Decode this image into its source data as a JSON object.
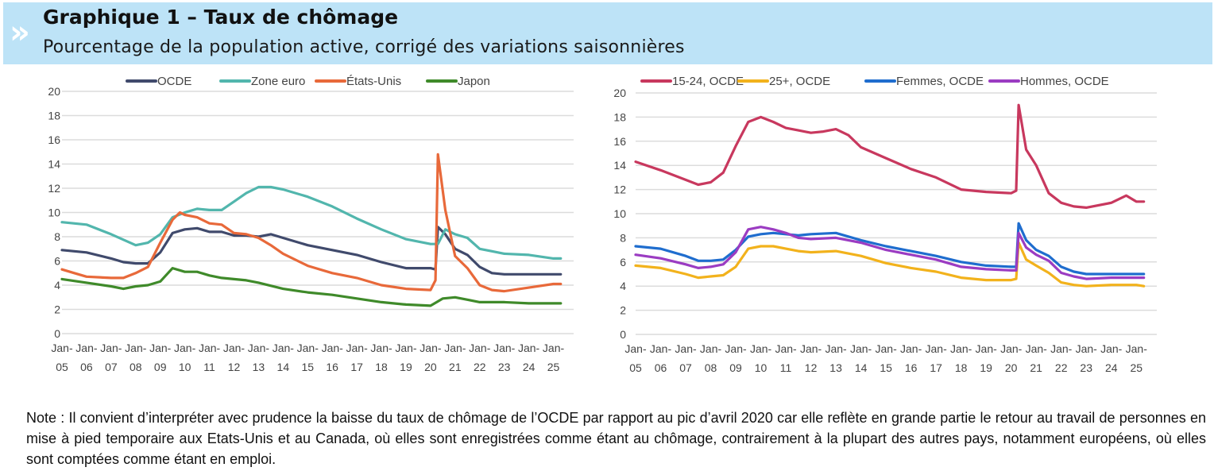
{
  "header": {
    "icon": "double-chevron-right-icon",
    "title": "Graphique 1 – Taux de chômage",
    "subtitle": "Pourcentage de la population active, corrigé des variations saisonnières"
  },
  "note": "Note : Il convient d’interpréter avec prudence la baisse du taux de chômage de l’OCDE par rapport au pic d’avril 2020 car elle reflète en grande partie le retour au travail de personnes en mise à pied temporaire aux Etats-Unis et au Canada, où elles sont enregistrées comme étant au chômage, contrairement à la plupart des autres pays, notamment européens, où elles sont comptées comme étant en emploi.",
  "chart_data": [
    {
      "type": "line",
      "title": "",
      "xlabel": "",
      "ylabel": "",
      "ylim": [
        0,
        20
      ],
      "yticks": [
        0,
        2,
        4,
        6,
        8,
        10,
        12,
        14,
        16,
        18,
        20
      ],
      "xlim": [
        2005,
        2025.5
      ],
      "grid": true,
      "legend": "top",
      "xtick_top": "Jan-",
      "xticks": [
        "05",
        "06",
        "07",
        "08",
        "09",
        "10",
        "11",
        "12",
        "13",
        "14",
        "15",
        "16",
        "17",
        "18",
        "19",
        "20",
        "21",
        "22",
        "23",
        "24",
        "25"
      ],
      "series": [
        {
          "name": "OCDE",
          "color": "#404a6c",
          "x": [
            2005,
            2006,
            2007,
            2007.5,
            2008,
            2008.5,
            2009,
            2009.5,
            2010,
            2010.5,
            2011,
            2011.5,
            2012,
            2012.5,
            2013,
            2013.5,
            2014,
            2015,
            2016,
            2017,
            2018,
            2019,
            2020,
            2020.2,
            2020.3,
            2020.6,
            2021,
            2021.5,
            2022,
            2022.5,
            2023,
            2024,
            2025,
            2025.3
          ],
          "y": [
            6.9,
            6.7,
            6.2,
            5.9,
            5.8,
            5.8,
            6.7,
            8.3,
            8.6,
            8.7,
            8.4,
            8.4,
            8.1,
            8.1,
            8.0,
            8.2,
            7.9,
            7.3,
            6.9,
            6.5,
            5.9,
            5.4,
            5.4,
            5.3,
            8.8,
            8.2,
            7.0,
            6.5,
            5.5,
            5.0,
            4.9,
            4.9,
            4.9,
            4.9
          ]
        },
        {
          "name": "Zone euro",
          "color": "#52b6ad",
          "x": [
            2005,
            2006,
            2007,
            2008,
            2008.5,
            2009,
            2009.5,
            2010,
            2010.5,
            2011,
            2011.5,
            2012,
            2012.5,
            2013,
            2013.5,
            2014,
            2015,
            2016,
            2017,
            2018,
            2019,
            2020,
            2020.3,
            2020.6,
            2021,
            2021.5,
            2022,
            2022.5,
            2023,
            2024,
            2025,
            2025.3
          ],
          "y": [
            9.2,
            9.0,
            8.2,
            7.3,
            7.5,
            8.2,
            9.6,
            10.0,
            10.3,
            10.2,
            10.2,
            10.9,
            11.6,
            12.1,
            12.1,
            11.9,
            11.3,
            10.5,
            9.5,
            8.6,
            7.8,
            7.4,
            7.4,
            8.6,
            8.2,
            7.9,
            7.0,
            6.8,
            6.6,
            6.5,
            6.2,
            6.2
          ]
        },
        {
          "name": "États-Unis",
          "color": "#e8693a",
          "x": [
            2005,
            2005.5,
            2006,
            2007,
            2007.5,
            2008,
            2008.5,
            2009,
            2009.5,
            2009.8,
            2010,
            2010.5,
            2011,
            2011.5,
            2012,
            2012.5,
            2013,
            2013.5,
            2014,
            2015,
            2016,
            2017,
            2018,
            2019,
            2020,
            2020.2,
            2020.3,
            2020.6,
            2021,
            2021.5,
            2022,
            2022.5,
            2023,
            2024,
            2025,
            2025.3
          ],
          "y": [
            5.3,
            5.0,
            4.7,
            4.6,
            4.6,
            5.0,
            5.5,
            7.5,
            9.4,
            10.0,
            9.8,
            9.6,
            9.1,
            9.0,
            8.3,
            8.2,
            7.9,
            7.3,
            6.6,
            5.6,
            5.0,
            4.6,
            4.0,
            3.7,
            3.6,
            4.4,
            14.8,
            10.2,
            6.4,
            5.4,
            4.0,
            3.6,
            3.5,
            3.8,
            4.1,
            4.1
          ]
        },
        {
          "name": "Japon",
          "color": "#3f8a2a",
          "x": [
            2005,
            2006,
            2007,
            2007.5,
            2008,
            2008.5,
            2009,
            2009.5,
            2010,
            2010.5,
            2011,
            2011.5,
            2012,
            2012.5,
            2013,
            2014,
            2015,
            2016,
            2017,
            2018,
            2019,
            2020,
            2020.5,
            2021,
            2021.5,
            2022,
            2023,
            2024,
            2025,
            2025.3
          ],
          "y": [
            4.5,
            4.2,
            3.9,
            3.7,
            3.9,
            4.0,
            4.3,
            5.4,
            5.1,
            5.1,
            4.8,
            4.6,
            4.5,
            4.4,
            4.2,
            3.7,
            3.4,
            3.2,
            2.9,
            2.6,
            2.4,
            2.3,
            2.9,
            3.0,
            2.8,
            2.6,
            2.6,
            2.5,
            2.5,
            2.5
          ]
        }
      ]
    },
    {
      "type": "line",
      "title": "",
      "xlabel": "",
      "ylabel": "",
      "ylim": [
        0,
        20
      ],
      "yticks": [
        0,
        2,
        4,
        6,
        8,
        10,
        12,
        14,
        16,
        18,
        20
      ],
      "xlim": [
        2005,
        2025.5
      ],
      "grid": true,
      "legend": "top",
      "xtick_top": "Jan-",
      "xticks": [
        "05",
        "06",
        "07",
        "08",
        "09",
        "10",
        "11",
        "12",
        "13",
        "14",
        "15",
        "16",
        "17",
        "18",
        "19",
        "20",
        "21",
        "22",
        "23",
        "24",
        "25"
      ],
      "series": [
        {
          "name": "15-24, OCDE",
          "color": "#c8385e",
          "x": [
            2005,
            2006,
            2007,
            2007.5,
            2008,
            2008.5,
            2009,
            2009.5,
            2010,
            2010.5,
            2011,
            2011.5,
            2012,
            2012.5,
            2013,
            2013.5,
            2014,
            2015,
            2016,
            2017,
            2018,
            2019,
            2020,
            2020.2,
            2020.3,
            2020.6,
            2021,
            2021.5,
            2022,
            2022.5,
            2023,
            2024,
            2024.6,
            2025,
            2025.3
          ],
          "y": [
            14.3,
            13.6,
            12.8,
            12.4,
            12.6,
            13.4,
            15.6,
            17.6,
            18.0,
            17.6,
            17.1,
            16.9,
            16.7,
            16.8,
            17.0,
            16.5,
            15.5,
            14.6,
            13.7,
            13.0,
            12.0,
            11.8,
            11.7,
            11.9,
            19.0,
            15.3,
            14.0,
            11.7,
            10.9,
            10.6,
            10.5,
            10.9,
            11.5,
            11.0,
            11.0
          ]
        },
        {
          "name": "25+, OCDE",
          "color": "#f2b21c",
          "x": [
            2005,
            2006,
            2007,
            2007.5,
            2008,
            2008.5,
            2009,
            2009.5,
            2010,
            2010.5,
            2011,
            2011.5,
            2012,
            2013,
            2014,
            2015,
            2016,
            2017,
            2018,
            2019,
            2020,
            2020.2,
            2020.3,
            2020.6,
            2021,
            2021.5,
            2022,
            2022.5,
            2023,
            2024,
            2025,
            2025.3
          ],
          "y": [
            5.7,
            5.5,
            5.0,
            4.7,
            4.8,
            4.9,
            5.6,
            7.1,
            7.3,
            7.3,
            7.1,
            6.9,
            6.8,
            6.9,
            6.5,
            5.9,
            5.5,
            5.2,
            4.7,
            4.5,
            4.5,
            4.6,
            7.6,
            6.2,
            5.7,
            5.1,
            4.3,
            4.1,
            4.0,
            4.1,
            4.1,
            4.0
          ]
        },
        {
          "name": "Femmes, OCDE",
          "color": "#1f6dce",
          "x": [
            2005,
            2006,
            2007,
            2007.5,
            2008,
            2008.5,
            2009,
            2009.5,
            2010,
            2010.5,
            2011,
            2011.5,
            2012,
            2013,
            2014,
            2015,
            2016,
            2017,
            2018,
            2019,
            2020,
            2020.2,
            2020.3,
            2020.6,
            2021,
            2021.5,
            2022,
            2022.5,
            2023,
            2024,
            2025,
            2025.3
          ],
          "y": [
            7.3,
            7.1,
            6.5,
            6.1,
            6.1,
            6.2,
            7.0,
            8.1,
            8.3,
            8.4,
            8.3,
            8.2,
            8.3,
            8.4,
            7.8,
            7.3,
            6.9,
            6.5,
            6.0,
            5.7,
            5.6,
            5.6,
            9.2,
            7.8,
            7.0,
            6.5,
            5.6,
            5.2,
            5.0,
            5.0,
            5.0,
            5.0
          ]
        },
        {
          "name": "Hommes, OCDE",
          "color": "#9b3cc2",
          "x": [
            2005,
            2006,
            2007,
            2007.5,
            2008,
            2008.5,
            2009,
            2009.5,
            2010,
            2010.5,
            2011,
            2011.5,
            2012,
            2013,
            2014,
            2015,
            2016,
            2017,
            2018,
            2019,
            2020,
            2020.2,
            2020.3,
            2020.6,
            2021,
            2021.5,
            2022,
            2022.5,
            2023,
            2024,
            2025,
            2025.3
          ],
          "y": [
            6.6,
            6.3,
            5.8,
            5.5,
            5.6,
            5.8,
            6.8,
            8.7,
            8.9,
            8.7,
            8.4,
            8.0,
            7.9,
            8.0,
            7.6,
            7.0,
            6.6,
            6.2,
            5.6,
            5.4,
            5.3,
            5.3,
            8.4,
            7.2,
            6.6,
            6.1,
            5.1,
            4.8,
            4.6,
            4.7,
            4.7,
            4.7
          ]
        }
      ]
    }
  ]
}
